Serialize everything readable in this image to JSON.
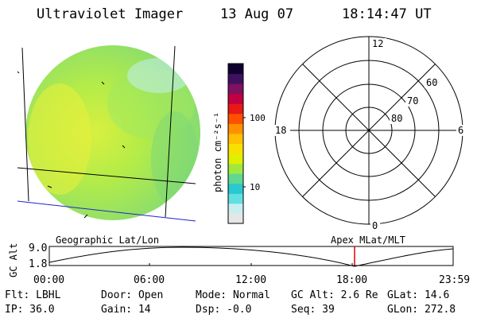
{
  "header": {
    "title": "Ultraviolet Imager",
    "date": "13 Aug 07",
    "time": "18:14:47 UT"
  },
  "colorbar": {
    "unit_label": "photon cm⁻²s⁻¹",
    "ticks": [
      "100",
      "10"
    ],
    "colors": [
      "#e6e6e6",
      "#c8eef0",
      "#60e0e0",
      "#28c8d0",
      "#60d890",
      "#a0e840",
      "#e0f000",
      "#f8e000",
      "#ffc000",
      "#ff9000",
      "#ff5000",
      "#e81818",
      "#c00040",
      "#801060",
      "#401060",
      "#100030"
    ]
  },
  "polar": {
    "mlt_labels": [
      "12",
      "18",
      "6",
      "0"
    ],
    "lat_labels": [
      "60",
      "70",
      "80"
    ]
  },
  "image_panel": {
    "fill_color": "#a8e85a"
  },
  "alt_plot": {
    "left_label": "Geographic Lat/Lon",
    "right_label": "Apex MLat/MLT",
    "ylabel": "GC Alt",
    "yticks": [
      "9.0",
      "1.8"
    ],
    "xticks": [
      "00:00",
      "06:00",
      "12:00",
      "18:00",
      "23:59"
    ],
    "marker_color": "#e00000"
  },
  "info": {
    "flt": "Flt: LBHL",
    "door": "Door: Open",
    "mode": "Mode: Normal",
    "gc_alt": "GC Alt: 2.6 Re",
    "glat": "GLat:  14.6",
    "ip": "IP: 36.0",
    "gain": "Gain: 14",
    "dsp": "Dsp:   -0.0",
    "seq": "Seq: 39",
    "glon": "GLon: 272.8"
  }
}
